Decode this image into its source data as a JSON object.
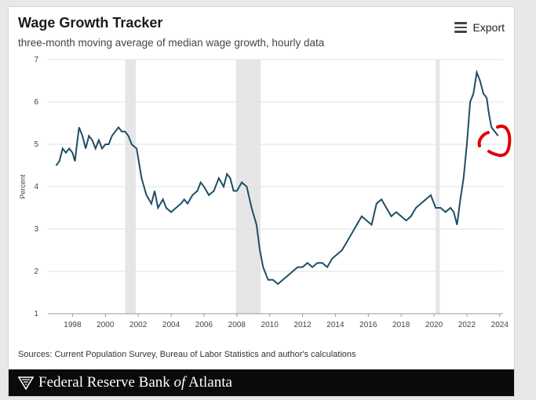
{
  "header": {
    "title": "Wage Growth Tracker",
    "subtitle": "three-month moving average of median wage growth, hourly data",
    "export_label": "Export"
  },
  "footer": {
    "sources": "Sources: Current Population Survey, Bureau of Labor Statistics and author's calculations",
    "bank_name_part1": "Federal Reserve Bank",
    "bank_name_of": "of",
    "bank_name_part2": "Atlanta"
  },
  "colors": {
    "line": "#1f4e66",
    "recession": "#e6e6e6",
    "grid": "#e2e2e2",
    "annotation": "#e10000"
  },
  "chart_data": {
    "type": "line",
    "ylabel": "Percent",
    "xlim": [
      1996.5,
      2024.2
    ],
    "ylim": [
      1,
      7
    ],
    "yticks": [
      1,
      2,
      3,
      4,
      5,
      6,
      7
    ],
    "xticks": [
      1998,
      2000,
      2002,
      2004,
      2006,
      2008,
      2010,
      2012,
      2014,
      2016,
      2018,
      2020,
      2022,
      2024
    ],
    "grid": true,
    "recessions": [
      [
        2001.2,
        2001.85
      ],
      [
        2007.95,
        2009.45
      ],
      [
        2020.1,
        2020.35
      ]
    ],
    "series": [
      {
        "name": "",
        "points": [
          [
            1997.0,
            4.5
          ],
          [
            1997.2,
            4.6
          ],
          [
            1997.4,
            4.9
          ],
          [
            1997.6,
            4.8
          ],
          [
            1997.8,
            4.9
          ],
          [
            1998.0,
            4.8
          ],
          [
            1998.15,
            4.6
          ],
          [
            1998.3,
            5.1
          ],
          [
            1998.4,
            5.4
          ],
          [
            1998.6,
            5.2
          ],
          [
            1998.8,
            4.9
          ],
          [
            1999.0,
            5.2
          ],
          [
            1999.2,
            5.1
          ],
          [
            1999.4,
            4.9
          ],
          [
            1999.6,
            5.1
          ],
          [
            1999.8,
            4.9
          ],
          [
            2000.0,
            5.0
          ],
          [
            2000.2,
            5.0
          ],
          [
            2000.4,
            5.2
          ],
          [
            2000.6,
            5.3
          ],
          [
            2000.8,
            5.4
          ],
          [
            2001.0,
            5.3
          ],
          [
            2001.2,
            5.3
          ],
          [
            2001.4,
            5.2
          ],
          [
            2001.6,
            5.0
          ],
          [
            2001.9,
            4.9
          ],
          [
            2002.2,
            4.2
          ],
          [
            2002.5,
            3.8
          ],
          [
            2002.8,
            3.6
          ],
          [
            2003.0,
            3.9
          ],
          [
            2003.2,
            3.5
          ],
          [
            2003.5,
            3.7
          ],
          [
            2003.7,
            3.5
          ],
          [
            2004.0,
            3.4
          ],
          [
            2004.3,
            3.5
          ],
          [
            2004.6,
            3.6
          ],
          [
            2004.8,
            3.7
          ],
          [
            2005.0,
            3.6
          ],
          [
            2005.3,
            3.8
          ],
          [
            2005.6,
            3.9
          ],
          [
            2005.8,
            4.1
          ],
          [
            2006.0,
            4.0
          ],
          [
            2006.3,
            3.8
          ],
          [
            2006.6,
            3.9
          ],
          [
            2006.9,
            4.2
          ],
          [
            2007.2,
            4.0
          ],
          [
            2007.4,
            4.3
          ],
          [
            2007.6,
            4.2
          ],
          [
            2007.8,
            3.9
          ],
          [
            2008.0,
            3.9
          ],
          [
            2008.3,
            4.1
          ],
          [
            2008.6,
            4.0
          ],
          [
            2008.9,
            3.5
          ],
          [
            2009.2,
            3.1
          ],
          [
            2009.4,
            2.5
          ],
          [
            2009.6,
            2.1
          ],
          [
            2009.9,
            1.8
          ],
          [
            2010.2,
            1.8
          ],
          [
            2010.5,
            1.7
          ],
          [
            2010.8,
            1.8
          ],
          [
            2011.1,
            1.9
          ],
          [
            2011.4,
            2.0
          ],
          [
            2011.7,
            2.1
          ],
          [
            2012.0,
            2.1
          ],
          [
            2012.3,
            2.2
          ],
          [
            2012.6,
            2.1
          ],
          [
            2012.9,
            2.2
          ],
          [
            2013.2,
            2.2
          ],
          [
            2013.5,
            2.1
          ],
          [
            2013.8,
            2.3
          ],
          [
            2014.1,
            2.4
          ],
          [
            2014.4,
            2.5
          ],
          [
            2014.7,
            2.7
          ],
          [
            2015.0,
            2.9
          ],
          [
            2015.3,
            3.1
          ],
          [
            2015.6,
            3.3
          ],
          [
            2015.9,
            3.2
          ],
          [
            2016.2,
            3.1
          ],
          [
            2016.5,
            3.6
          ],
          [
            2016.8,
            3.7
          ],
          [
            2017.1,
            3.5
          ],
          [
            2017.4,
            3.3
          ],
          [
            2017.7,
            3.4
          ],
          [
            2018.0,
            3.3
          ],
          [
            2018.3,
            3.2
          ],
          [
            2018.6,
            3.3
          ],
          [
            2018.9,
            3.5
          ],
          [
            2019.2,
            3.6
          ],
          [
            2019.5,
            3.7
          ],
          [
            2019.8,
            3.8
          ],
          [
            2020.1,
            3.5
          ],
          [
            2020.4,
            3.5
          ],
          [
            2020.7,
            3.4
          ],
          [
            2021.0,
            3.5
          ],
          [
            2021.2,
            3.4
          ],
          [
            2021.4,
            3.1
          ],
          [
            2021.6,
            3.7
          ],
          [
            2021.8,
            4.2
          ],
          [
            2022.0,
            5.0
          ],
          [
            2022.2,
            6.0
          ],
          [
            2022.4,
            6.2
          ],
          [
            2022.6,
            6.7
          ],
          [
            2022.8,
            6.5
          ],
          [
            2023.0,
            6.2
          ],
          [
            2023.2,
            6.1
          ],
          [
            2023.35,
            5.7
          ],
          [
            2023.5,
            5.4
          ],
          [
            2023.7,
            5.3
          ],
          [
            2023.9,
            5.2
          ]
        ]
      }
    ]
  }
}
